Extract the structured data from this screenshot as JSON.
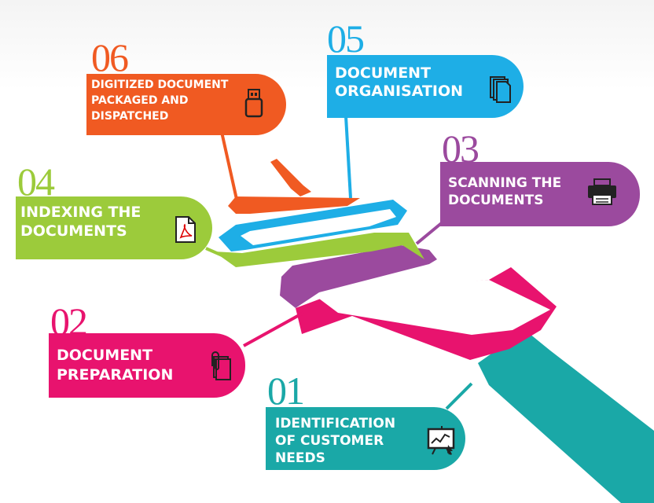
{
  "colors": {
    "teal": "#1aa8a7",
    "pink": "#e8136e",
    "purple": "#9b4a9e",
    "green": "#9ccb3b",
    "blue": "#1eaee6",
    "orange": "#f05a22"
  },
  "steps": [
    {
      "number": "01",
      "lines": [
        "IDENTIFICATION",
        " OF CUSTOMER",
        "NEEDS"
      ],
      "icon": "presentation-board-icon",
      "color": "teal"
    },
    {
      "number": "02",
      "lines": [
        "DOCUMENT",
        "PREPARATION"
      ],
      "icon": "paperclip-documents-icon",
      "color": "pink"
    },
    {
      "number": "03",
      "lines": [
        "SCANNING THE",
        "DOCUMENTS"
      ],
      "icon": "printer-scanner-icon",
      "color": "purple"
    },
    {
      "number": "04",
      "lines": [
        "INDEXING THE",
        "DOCUMENTS"
      ],
      "icon": "pdf-file-icon",
      "color": "green"
    },
    {
      "number": "05",
      "lines": [
        "DOCUMENT",
        "ORGANISATION"
      ],
      "icon": "stacked-documents-icon",
      "color": "blue"
    },
    {
      "number": "06",
      "lines": [
        "DIGITIZED DOCUMENT",
        "PACKAGED AND",
        "DISPATCHED"
      ],
      "icon": "usb-drive-icon",
      "color": "orange"
    }
  ]
}
